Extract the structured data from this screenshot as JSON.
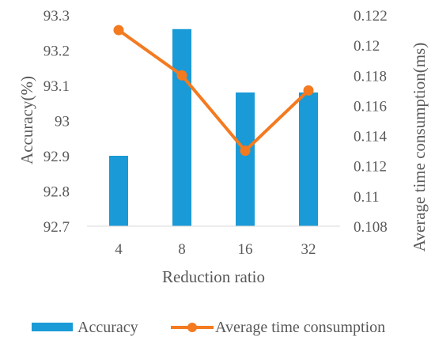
{
  "chart_data": {
    "type": "bar",
    "categories": [
      "4",
      "8",
      "16",
      "32"
    ],
    "xlabel": "Reduction ratio",
    "ylabel": "Accuracy(%)",
    "ylabel_right": "Average time consumption(ms)",
    "ylim": [
      92.7,
      93.3
    ],
    "y_ticks": [
      "92.7",
      "92.8",
      "92.9",
      "93",
      "93.1",
      "93.2",
      "93.3"
    ],
    "y2lim": [
      0.108,
      0.122
    ],
    "y2_ticks": [
      "0.108",
      "0.11",
      "0.112",
      "0.114",
      "0.116",
      "0.118",
      "0.12",
      "0.122"
    ],
    "grid": false,
    "legend_position": "bottom",
    "series": [
      {
        "name": "Accuracy",
        "type": "bar",
        "axis": "left",
        "color": "#1a9ad6",
        "values": [
          92.9,
          93.26,
          93.08,
          93.08
        ]
      },
      {
        "name": "Average time consumption",
        "type": "line",
        "axis": "right",
        "color": "#f47a20",
        "values": [
          0.121,
          0.118,
          0.113,
          0.117
        ]
      }
    ]
  }
}
